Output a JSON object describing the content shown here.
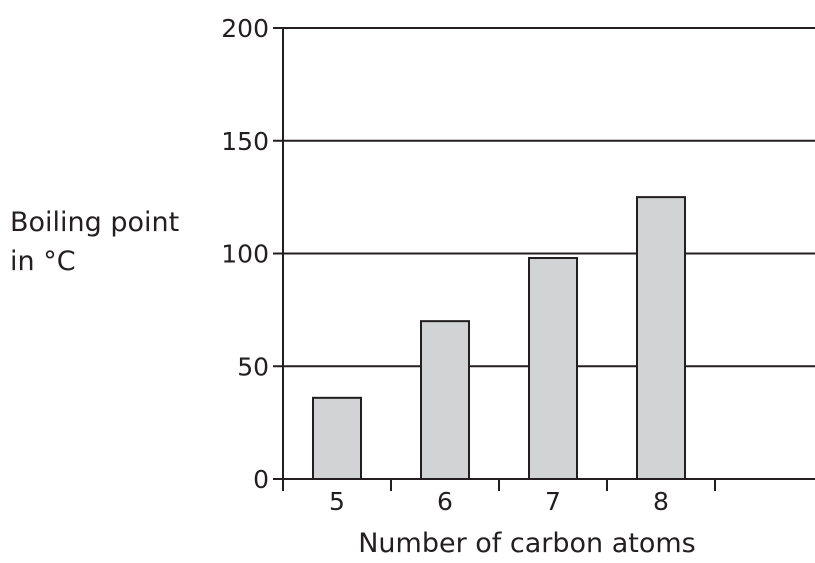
{
  "chart_data": {
    "type": "bar",
    "categories": [
      "5",
      "6",
      "7",
      "8"
    ],
    "values": [
      36,
      70,
      98,
      125
    ],
    "xlabel": "Number of carbon atoms",
    "ylabel": [
      "Boiling point",
      "in °C"
    ],
    "ylim": [
      0,
      200
    ],
    "yticks": [
      0,
      50,
      100,
      150,
      200
    ],
    "grid": true,
    "colors": {
      "bar_fill": "#d1d3d4",
      "ink": "#231f20"
    }
  }
}
